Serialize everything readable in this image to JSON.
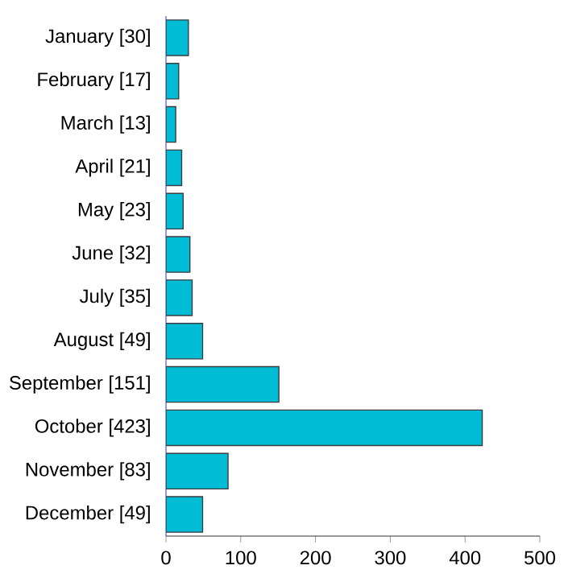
{
  "chart_data": {
    "type": "bar",
    "orientation": "horizontal",
    "categories": [
      "January [30]",
      "February [17]",
      "March [13]",
      "April [21]",
      "May [23]",
      "June [32]",
      "July [35]",
      "August [49]",
      "September [151]",
      "October [423]",
      "November [83]",
      "December [49]"
    ],
    "values": [
      30,
      17,
      13,
      21,
      23,
      32,
      35,
      49,
      151,
      423,
      83,
      49
    ],
    "color": "#00bcd4",
    "xlim": [
      0,
      500
    ],
    "xticks": [
      0,
      100,
      200,
      300,
      400,
      500
    ]
  }
}
